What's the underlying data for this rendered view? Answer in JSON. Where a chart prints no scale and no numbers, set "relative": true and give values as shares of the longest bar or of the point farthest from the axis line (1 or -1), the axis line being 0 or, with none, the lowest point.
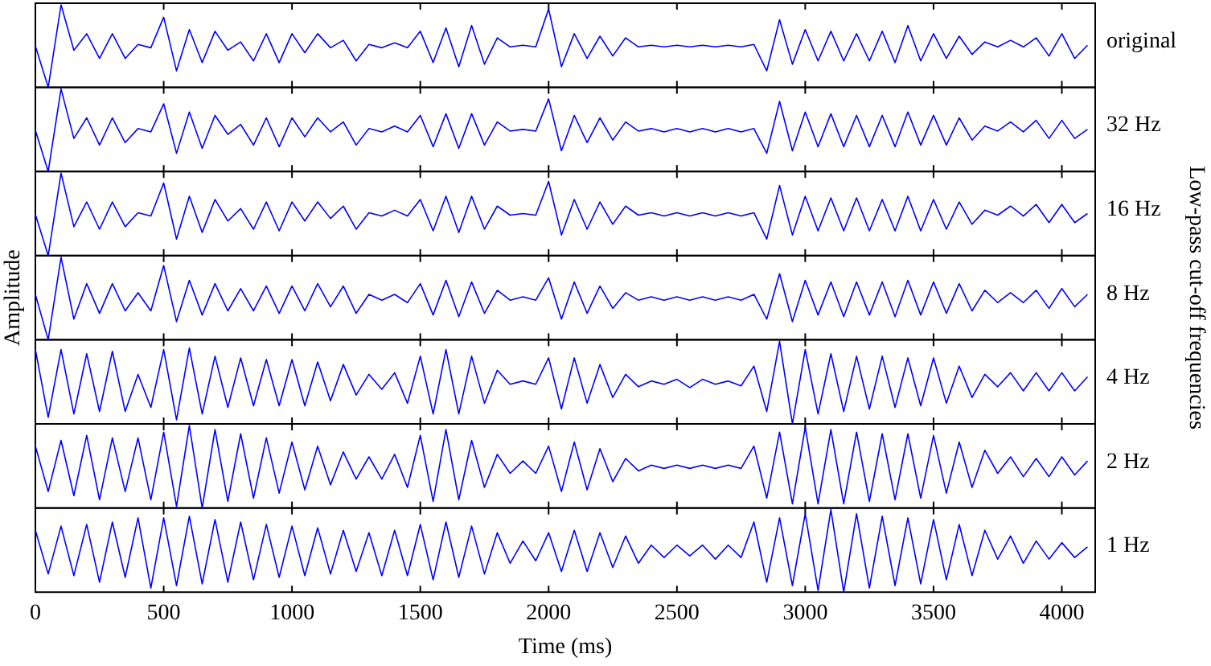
{
  "chart_data": [
    {
      "type": "line",
      "relative": true,
      "tick_labels": false,
      "xlim": [
        0,
        4130
      ],
      "xticks": [
        0,
        500,
        1000,
        1500,
        2000,
        2500,
        3000,
        3500,
        4000
      ],
      "x": [
        0,
        50,
        100,
        150,
        200,
        250,
        300,
        350,
        400,
        450,
        500,
        550,
        600,
        650,
        700,
        750,
        800,
        850,
        900,
        950,
        1000,
        1050,
        1100,
        1150,
        1200,
        1250,
        1300,
        1350,
        1400,
        1450,
        1500,
        1550,
        1600,
        1650,
        1700,
        1750,
        1800,
        1850,
        1900,
        1950,
        2000,
        2050,
        2100,
        2150,
        2200,
        2250,
        2300,
        2350,
        2400,
        2450,
        2500,
        2550,
        2600,
        2650,
        2700,
        2750,
        2800,
        2850,
        2900,
        2950,
        3000,
        3050,
        3100,
        3150,
        3200,
        3250,
        3300,
        3350,
        3400,
        3450,
        3500,
        3550,
        3600,
        3650,
        3700,
        3750,
        3800,
        3850,
        3900,
        3950,
        4000,
        4050,
        4100
      ],
      "series": [
        {
          "name": "original",
          "color": "#0000ff",
          "values": [
            0.5,
            0,
            1,
            0.45,
            0.65,
            0.35,
            0.65,
            0.35,
            0.52,
            0.48,
            0.85,
            0.2,
            0.7,
            0.3,
            0.68,
            0.45,
            0.55,
            0.32,
            0.65,
            0.3,
            0.65,
            0.42,
            0.65,
            0.48,
            0.57,
            0.32,
            0.52,
            0.48,
            0.54,
            0.48,
            0.68,
            0.3,
            0.72,
            0.25,
            0.75,
            0.28,
            0.6,
            0.49,
            0.51,
            0.49,
            0.95,
            0.25,
            0.65,
            0.35,
            0.62,
            0.38,
            0.6,
            0.49,
            0.51,
            0.49,
            0.51,
            0.49,
            0.51,
            0.49,
            0.51,
            0.49,
            0.52,
            0.2,
            0.82,
            0.28,
            0.7,
            0.32,
            0.68,
            0.32,
            0.65,
            0.32,
            0.68,
            0.3,
            0.75,
            0.32,
            0.65,
            0.35,
            0.62,
            0.4,
            0.55,
            0.49,
            0.57,
            0.49,
            0.6,
            0.38,
            0.65,
            0.35,
            0.51
          ]
        }
      ]
    },
    {
      "type": "line",
      "relative": true,
      "tick_labels": false,
      "xlim": [
        0,
        4130
      ],
      "xticks": [
        0,
        500,
        1000,
        1500,
        2000,
        2500,
        3000,
        3500,
        4000
      ],
      "x": [
        0,
        50,
        100,
        150,
        200,
        250,
        300,
        350,
        400,
        450,
        500,
        550,
        600,
        650,
        700,
        750,
        800,
        850,
        900,
        950,
        1000,
        1050,
        1100,
        1150,
        1200,
        1250,
        1300,
        1350,
        1400,
        1450,
        1500,
        1550,
        1600,
        1650,
        1700,
        1750,
        1800,
        1850,
        1900,
        1950,
        2000,
        2050,
        2100,
        2150,
        2200,
        2250,
        2300,
        2350,
        2400,
        2450,
        2500,
        2550,
        2600,
        2650,
        2700,
        2750,
        2800,
        2850,
        2900,
        2950,
        3000,
        3050,
        3100,
        3150,
        3200,
        3250,
        3300,
        3350,
        3400,
        3450,
        3500,
        3550,
        3600,
        3650,
        3700,
        3750,
        3800,
        3850,
        3900,
        3950,
        4000,
        4050,
        4100
      ],
      "series": [
        {
          "name": "32 Hz",
          "color": "#0000ff",
          "values": [
            0.5,
            0,
            1,
            0.4,
            0.65,
            0.32,
            0.65,
            0.35,
            0.52,
            0.48,
            0.82,
            0.22,
            0.72,
            0.28,
            0.68,
            0.45,
            0.57,
            0.32,
            0.65,
            0.3,
            0.65,
            0.42,
            0.65,
            0.48,
            0.6,
            0.32,
            0.52,
            0.48,
            0.55,
            0.48,
            0.68,
            0.3,
            0.7,
            0.28,
            0.7,
            0.32,
            0.6,
            0.49,
            0.51,
            0.49,
            0.88,
            0.25,
            0.68,
            0.35,
            0.65,
            0.38,
            0.6,
            0.49,
            0.52,
            0.48,
            0.52,
            0.48,
            0.52,
            0.48,
            0.52,
            0.48,
            0.52,
            0.22,
            0.85,
            0.25,
            0.72,
            0.3,
            0.7,
            0.3,
            0.68,
            0.3,
            0.68,
            0.3,
            0.72,
            0.32,
            0.68,
            0.32,
            0.65,
            0.38,
            0.55,
            0.49,
            0.6,
            0.48,
            0.62,
            0.4,
            0.62,
            0.4,
            0.51
          ]
        }
      ]
    },
    {
      "type": "line",
      "relative": true,
      "tick_labels": false,
      "xlim": [
        0,
        4130
      ],
      "xticks": [
        0,
        500,
        1000,
        1500,
        2000,
        2500,
        3000,
        3500,
        4000
      ],
      "x": [
        0,
        50,
        100,
        150,
        200,
        250,
        300,
        350,
        400,
        450,
        500,
        550,
        600,
        650,
        700,
        750,
        800,
        850,
        900,
        950,
        1000,
        1050,
        1100,
        1150,
        1200,
        1250,
        1300,
        1350,
        1400,
        1450,
        1500,
        1550,
        1600,
        1650,
        1700,
        1750,
        1800,
        1850,
        1900,
        1950,
        2000,
        2050,
        2100,
        2150,
        2200,
        2250,
        2300,
        2350,
        2400,
        2450,
        2500,
        2550,
        2600,
        2650,
        2700,
        2750,
        2800,
        2850,
        2900,
        2950,
        3000,
        3050,
        3100,
        3150,
        3200,
        3250,
        3300,
        3350,
        3400,
        3450,
        3500,
        3550,
        3600,
        3650,
        3700,
        3750,
        3800,
        3850,
        3900,
        3950,
        4000,
        4050,
        4100
      ],
      "series": [
        {
          "name": "16 Hz",
          "color": "#0000ff",
          "values": [
            0.5,
            0,
            1,
            0.35,
            0.65,
            0.32,
            0.65,
            0.35,
            0.52,
            0.48,
            0.88,
            0.2,
            0.72,
            0.28,
            0.68,
            0.42,
            0.57,
            0.32,
            0.65,
            0.3,
            0.65,
            0.42,
            0.65,
            0.45,
            0.6,
            0.32,
            0.52,
            0.48,
            0.55,
            0.48,
            0.68,
            0.3,
            0.72,
            0.28,
            0.72,
            0.32,
            0.6,
            0.49,
            0.51,
            0.49,
            0.9,
            0.25,
            0.68,
            0.32,
            0.65,
            0.38,
            0.6,
            0.49,
            0.52,
            0.48,
            0.52,
            0.48,
            0.52,
            0.48,
            0.52,
            0.48,
            0.52,
            0.2,
            0.85,
            0.25,
            0.72,
            0.3,
            0.7,
            0.3,
            0.7,
            0.3,
            0.68,
            0.3,
            0.72,
            0.3,
            0.68,
            0.32,
            0.65,
            0.38,
            0.55,
            0.49,
            0.6,
            0.48,
            0.62,
            0.4,
            0.62,
            0.4,
            0.51
          ]
        }
      ]
    },
    {
      "type": "line",
      "relative": true,
      "tick_labels": false,
      "ylabel": "Amplitude",
      "y2label": "Low-pass cut-off frequencies",
      "xlim": [
        0,
        4130
      ],
      "xticks": [
        0,
        500,
        1000,
        1500,
        2000,
        2500,
        3000,
        3500,
        4000
      ],
      "x": [
        0,
        50,
        100,
        150,
        200,
        250,
        300,
        350,
        400,
        450,
        500,
        550,
        600,
        650,
        700,
        750,
        800,
        850,
        900,
        950,
        1000,
        1050,
        1100,
        1150,
        1200,
        1250,
        1300,
        1350,
        1400,
        1450,
        1500,
        1550,
        1600,
        1650,
        1700,
        1750,
        1800,
        1850,
        1900,
        1950,
        2000,
        2050,
        2100,
        2150,
        2200,
        2250,
        2300,
        2350,
        2400,
        2450,
        2500,
        2550,
        2600,
        2650,
        2700,
        2750,
        2800,
        2850,
        2900,
        2950,
        3000,
        3050,
        3100,
        3150,
        3200,
        3250,
        3300,
        3350,
        3400,
        3450,
        3500,
        3550,
        3600,
        3650,
        3700,
        3750,
        3800,
        3850,
        3900,
        3950,
        4000,
        4050,
        4100
      ],
      "series": [
        {
          "name": "8 Hz",
          "color": "#0000ff",
          "values": [
            0.55,
            0,
            1,
            0.25,
            0.68,
            0.32,
            0.68,
            0.35,
            0.57,
            0.35,
            0.9,
            0.22,
            0.72,
            0.3,
            0.68,
            0.35,
            0.62,
            0.35,
            0.65,
            0.32,
            0.65,
            0.35,
            0.68,
            0.4,
            0.65,
            0.32,
            0.55,
            0.48,
            0.55,
            0.45,
            0.68,
            0.3,
            0.72,
            0.28,
            0.7,
            0.32,
            0.6,
            0.48,
            0.52,
            0.48,
            0.75,
            0.25,
            0.7,
            0.32,
            0.65,
            0.38,
            0.57,
            0.48,
            0.52,
            0.48,
            0.52,
            0.48,
            0.52,
            0.48,
            0.52,
            0.48,
            0.55,
            0.25,
            0.8,
            0.22,
            0.72,
            0.3,
            0.7,
            0.28,
            0.7,
            0.3,
            0.7,
            0.28,
            0.72,
            0.3,
            0.7,
            0.32,
            0.68,
            0.35,
            0.6,
            0.45,
            0.57,
            0.45,
            0.6,
            0.38,
            0.62,
            0.4,
            0.55
          ]
        }
      ]
    },
    {
      "type": "line",
      "relative": true,
      "tick_labels": false,
      "xlim": [
        0,
        4130
      ],
      "xticks": [
        0,
        500,
        1000,
        1500,
        2000,
        2500,
        3000,
        3500,
        4000
      ],
      "x": [
        0,
        50,
        100,
        150,
        200,
        250,
        300,
        350,
        400,
        450,
        500,
        550,
        600,
        650,
        700,
        750,
        800,
        850,
        900,
        950,
        1000,
        1050,
        1100,
        1150,
        1200,
        1250,
        1300,
        1350,
        1400,
        1450,
        1500,
        1550,
        1600,
        1650,
        1700,
        1750,
        1800,
        1850,
        1900,
        1950,
        2000,
        2050,
        2100,
        2150,
        2200,
        2250,
        2300,
        2350,
        2400,
        2450,
        2500,
        2550,
        2600,
        2650,
        2700,
        2750,
        2800,
        2850,
        2900,
        2950,
        3000,
        3050,
        3100,
        3150,
        3200,
        3250,
        3300,
        3350,
        3400,
        3450,
        3500,
        3550,
        3600,
        3650,
        3700,
        3750,
        3800,
        3850,
        3900,
        3950,
        4000,
        4050,
        4100
      ],
      "series": [
        {
          "name": "4 Hz",
          "color": "#0000ff",
          "values": [
            0.9,
            0.08,
            0.9,
            0.12,
            0.85,
            0.15,
            0.88,
            0.15,
            0.6,
            0.2,
            0.9,
            0.05,
            0.92,
            0.12,
            0.82,
            0.2,
            0.8,
            0.22,
            0.78,
            0.22,
            0.78,
            0.22,
            0.75,
            0.28,
            0.72,
            0.35,
            0.6,
            0.42,
            0.62,
            0.25,
            0.82,
            0.12,
            0.9,
            0.12,
            0.82,
            0.25,
            0.65,
            0.48,
            0.52,
            0.48,
            0.8,
            0.18,
            0.8,
            0.25,
            0.72,
            0.32,
            0.6,
            0.45,
            0.52,
            0.48,
            0.54,
            0.44,
            0.54,
            0.48,
            0.52,
            0.46,
            0.7,
            0.15,
            1,
            0,
            0.9,
            0.12,
            0.85,
            0.15,
            0.82,
            0.18,
            0.82,
            0.2,
            0.8,
            0.22,
            0.8,
            0.25,
            0.7,
            0.32,
            0.6,
            0.45,
            0.62,
            0.4,
            0.62,
            0.4,
            0.62,
            0.4,
            0.57
          ]
        }
      ]
    },
    {
      "type": "line",
      "relative": true,
      "tick_labels": false,
      "xlim": [
        0,
        4130
      ],
      "xticks": [
        0,
        500,
        1000,
        1500,
        2000,
        2500,
        3000,
        3500,
        4000
      ],
      "x": [
        0,
        50,
        100,
        150,
        200,
        250,
        300,
        350,
        400,
        450,
        500,
        550,
        600,
        650,
        700,
        750,
        800,
        850,
        900,
        950,
        1000,
        1050,
        1100,
        1150,
        1200,
        1250,
        1300,
        1350,
        1400,
        1450,
        1500,
        1550,
        1600,
        1650,
        1700,
        1750,
        1800,
        1850,
        1900,
        1950,
        2000,
        2050,
        2100,
        2150,
        2200,
        2250,
        2300,
        2350,
        2400,
        2450,
        2500,
        2550,
        2600,
        2650,
        2700,
        2750,
        2800,
        2850,
        2900,
        2950,
        3000,
        3050,
        3100,
        3150,
        3200,
        3250,
        3300,
        3350,
        3400,
        3450,
        3500,
        3550,
        3600,
        3650,
        3700,
        3750,
        3800,
        3850,
        3900,
        3950,
        4000,
        4050,
        4100
      ],
      "series": [
        {
          "name": "2 Hz",
          "color": "#0000ff",
          "values": [
            0.75,
            0.2,
            0.82,
            0.15,
            0.88,
            0.1,
            0.85,
            0.2,
            0.85,
            0.1,
            0.92,
            0.02,
            1,
            0,
            0.95,
            0.08,
            0.9,
            0.12,
            0.85,
            0.18,
            0.8,
            0.22,
            0.75,
            0.28,
            0.68,
            0.35,
            0.62,
            0.35,
            0.65,
            0.25,
            0.88,
            0.08,
            0.95,
            0.1,
            0.82,
            0.25,
            0.65,
            0.42,
            0.57,
            0.42,
            0.75,
            0.2,
            0.8,
            0.22,
            0.72,
            0.32,
            0.6,
            0.45,
            0.52,
            0.48,
            0.52,
            0.48,
            0.52,
            0.48,
            0.52,
            0.48,
            0.75,
            0.12,
            0.92,
            0.05,
            0.98,
            0.05,
            0.95,
            0.05,
            0.92,
            0.08,
            0.9,
            0.1,
            0.9,
            0.12,
            0.88,
            0.18,
            0.8,
            0.25,
            0.7,
            0.42,
            0.62,
            0.38,
            0.6,
            0.38,
            0.62,
            0.4,
            0.57
          ]
        }
      ]
    },
    {
      "type": "line",
      "relative": true,
      "tick_labels": "x",
      "xlabel": "Time (ms)",
      "xlim": [
        0,
        4130
      ],
      "xticks": [
        0,
        500,
        1000,
        1500,
        2000,
        2500,
        3000,
        3500,
        4000
      ],
      "x": [
        0,
        50,
        100,
        150,
        200,
        250,
        300,
        350,
        400,
        450,
        500,
        550,
        600,
        650,
        700,
        750,
        800,
        850,
        900,
        950,
        1000,
        1050,
        1100,
        1150,
        1200,
        1250,
        1300,
        1350,
        1400,
        1450,
        1500,
        1550,
        1600,
        1650,
        1700,
        1750,
        1800,
        1850,
        1900,
        1950,
        2000,
        2050,
        2100,
        2150,
        2200,
        2250,
        2300,
        2350,
        2400,
        2450,
        2500,
        2550,
        2600,
        2650,
        2700,
        2750,
        2800,
        2850,
        2900,
        2950,
        3000,
        3050,
        3100,
        3150,
        3200,
        3250,
        3300,
        3350,
        3400,
        3450,
        3500,
        3550,
        3600,
        3650,
        3700,
        3750,
        3800,
        3850,
        3900,
        3950,
        4000,
        4050,
        4100
      ],
      "series": [
        {
          "name": "1 Hz",
          "color": "#0000ff",
          "values": [
            0.75,
            0.22,
            0.8,
            0.2,
            0.82,
            0.12,
            0.85,
            0.18,
            0.9,
            0.05,
            0.9,
            0.08,
            0.92,
            0.1,
            0.88,
            0.12,
            0.85,
            0.15,
            0.82,
            0.18,
            0.8,
            0.2,
            0.78,
            0.22,
            0.75,
            0.25,
            0.72,
            0.2,
            0.75,
            0.2,
            0.82,
            0.15,
            0.85,
            0.18,
            0.8,
            0.22,
            0.72,
            0.35,
            0.62,
            0.38,
            0.72,
            0.25,
            0.75,
            0.25,
            0.72,
            0.3,
            0.68,
            0.35,
            0.57,
            0.42,
            0.57,
            0.44,
            0.57,
            0.4,
            0.57,
            0.42,
            0.85,
            0.12,
            0.9,
            0.08,
            0.95,
            0.02,
            1,
            0,
            0.95,
            0.05,
            0.92,
            0.08,
            0.9,
            0.1,
            0.88,
            0.15,
            0.82,
            0.2,
            0.75,
            0.4,
            0.68,
            0.35,
            0.62,
            0.4,
            0.6,
            0.42,
            0.55
          ]
        }
      ]
    }
  ]
}
